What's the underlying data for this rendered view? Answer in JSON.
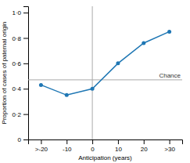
{
  "chart_data": {
    "type": "line",
    "x": [
      -20,
      -10,
      0,
      10,
      20,
      30
    ],
    "values": [
      0.43,
      0.35,
      0.4,
      0.6,
      0.76,
      0.85
    ],
    "marker": "circle",
    "xlabel": "Anticipation (years)",
    "ylabel": "Proportion of cases of paternal origin",
    "xlim": [
      -25,
      35
    ],
    "ylim": [
      0,
      1.05
    ],
    "xticks": [
      {
        "value": -20,
        "label": ">-20"
      },
      -10,
      0,
      10,
      20,
      {
        "value": 30,
        "label": ">30"
      }
    ],
    "yticks": [
      0,
      {
        "value": 0.2,
        "label": "0·2"
      },
      {
        "value": 0.4,
        "label": "0·4"
      },
      {
        "value": 0.6,
        "label": "0·6"
      },
      {
        "value": 0.8,
        "label": "0·8"
      },
      {
        "value": 1.0,
        "label": "1·0"
      }
    ],
    "reference_lines": [
      {
        "axis": "y",
        "value": 0.47,
        "label": "Chance"
      },
      {
        "axis": "x",
        "value": 0
      }
    ]
  }
}
